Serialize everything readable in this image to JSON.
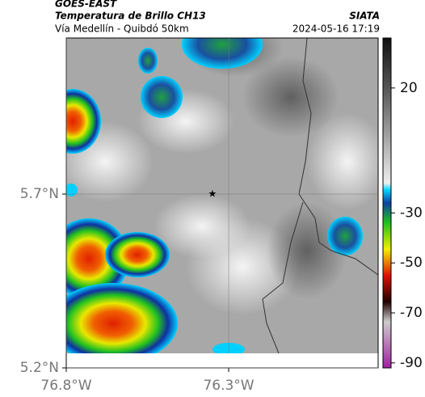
{
  "header": {
    "title": "GOES-EAST",
    "subtitle": "Temperatura de Brillo CH13",
    "source": "SIATA",
    "route": "Vía Medellín - Quibdó 50km",
    "datetime": "2024-05-16 17:19"
  },
  "map": {
    "xlim": [
      -76.8,
      -75.84
    ],
    "ylim": [
      5.2,
      6.149
    ],
    "xticks": [
      {
        "value": -76.8,
        "label": "76.8°W"
      },
      {
        "value": -76.3,
        "label": "76.3°W"
      }
    ],
    "yticks": [
      {
        "value": 5.7,
        "label": "5.7°N"
      },
      {
        "value": 5.2,
        "label": "5.2°N"
      }
    ],
    "grid": true,
    "marker": {
      "lon": -76.35,
      "lat": 5.7
    }
  },
  "colorbar": {
    "lim": [
      -92,
      40
    ],
    "ticks": [
      20,
      -30,
      -50,
      -70,
      -90
    ]
  }
}
